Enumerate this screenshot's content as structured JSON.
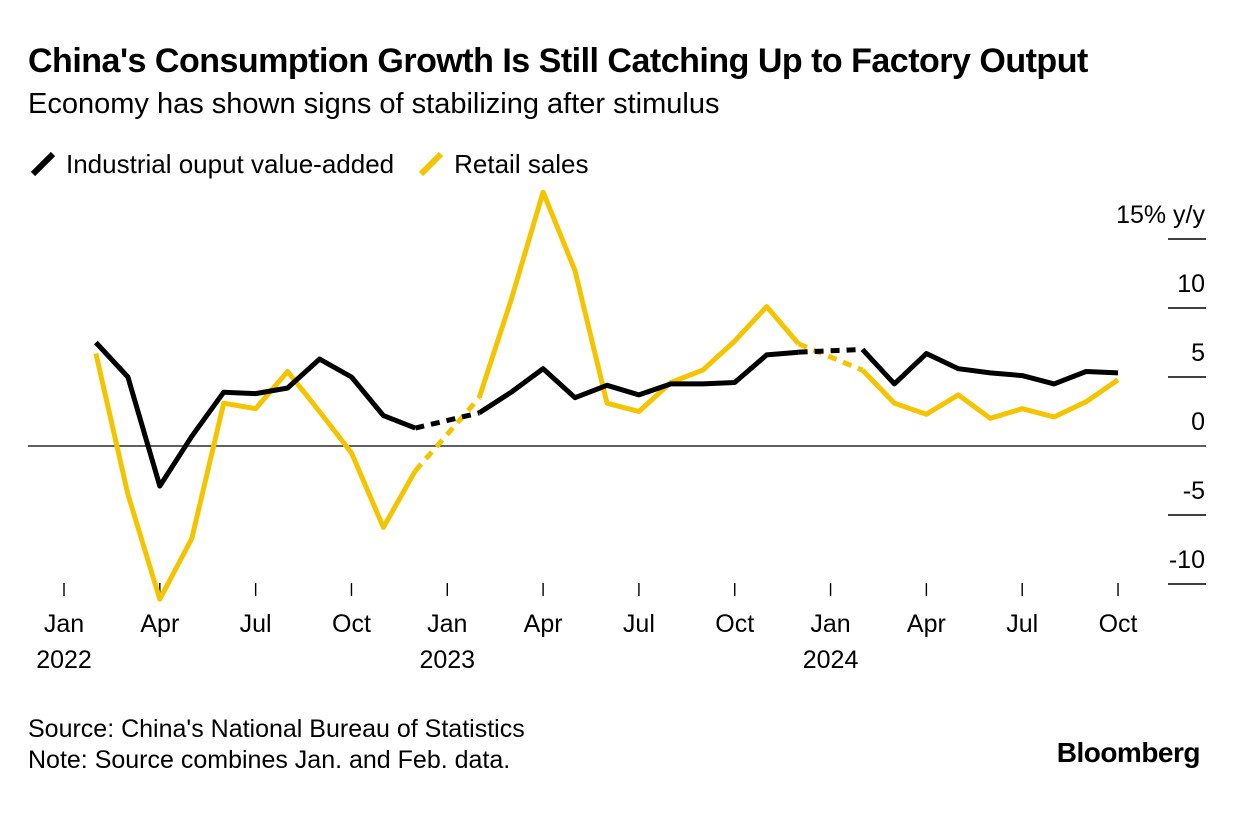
{
  "chart_data": {
    "type": "line",
    "title": "China's Consumption Growth Is Still Catching Up to Factory Output",
    "subtitle": "Economy has shown signs of stabilizing after stimulus",
    "ylabel": "% y/y",
    "ylim": [
      -10,
      15
    ],
    "yticks": [
      {
        "value": 15,
        "label": "15% y/y"
      },
      {
        "value": 10,
        "label": "10"
      },
      {
        "value": 5,
        "label": "5"
      },
      {
        "value": 0,
        "label": "0"
      },
      {
        "value": -5,
        "label": "-5"
      },
      {
        "value": -10,
        "label": "-10"
      }
    ],
    "xticks": [
      {
        "index": 0,
        "label": "Jan",
        "year": "2022"
      },
      {
        "index": 3,
        "label": "Apr",
        "year": ""
      },
      {
        "index": 6,
        "label": "Jul",
        "year": ""
      },
      {
        "index": 9,
        "label": "Oct",
        "year": ""
      },
      {
        "index": 12,
        "label": "Jan",
        "year": "2023"
      },
      {
        "index": 15,
        "label": "Apr",
        "year": ""
      },
      {
        "index": 18,
        "label": "Jul",
        "year": ""
      },
      {
        "index": 21,
        "label": "Oct",
        "year": ""
      },
      {
        "index": 24,
        "label": "Jan",
        "year": "2024"
      },
      {
        "index": 27,
        "label": "Apr",
        "year": ""
      },
      {
        "index": 30,
        "label": "Jul",
        "year": ""
      },
      {
        "index": 33,
        "label": "Oct",
        "year": ""
      }
    ],
    "series": [
      {
        "name": "Industrial ouput value-added",
        "color": "#000000",
        "points": [
          [
            1,
            7.5
          ],
          [
            2,
            5.0
          ],
          [
            3,
            -2.9
          ],
          [
            4,
            0.7
          ],
          [
            5,
            3.9
          ],
          [
            6,
            3.8
          ],
          [
            7,
            4.2
          ],
          [
            8,
            6.3
          ],
          [
            9,
            5.0
          ],
          [
            10,
            2.2
          ],
          [
            11,
            1.3
          ],
          [
            13,
            2.4
          ],
          [
            14,
            3.9
          ],
          [
            15,
            5.6
          ],
          [
            16,
            3.5
          ],
          [
            17,
            4.4
          ],
          [
            18,
            3.7
          ],
          [
            19,
            4.5
          ],
          [
            20,
            4.5
          ],
          [
            21,
            4.6
          ],
          [
            22,
            6.6
          ],
          [
            23,
            6.8
          ],
          [
            25,
            7.0
          ],
          [
            26,
            4.5
          ],
          [
            27,
            6.7
          ],
          [
            28,
            5.6
          ],
          [
            29,
            5.3
          ],
          [
            30,
            5.1
          ],
          [
            31,
            4.5
          ],
          [
            32,
            5.4
          ],
          [
            33,
            5.3
          ]
        ],
        "dashed_gaps": [
          [
            11,
            13
          ],
          [
            23,
            25
          ]
        ]
      },
      {
        "name": "Retail sales",
        "color": "#f5c400",
        "points": [
          [
            1,
            6.7
          ],
          [
            2,
            -3.5
          ],
          [
            3,
            -11.1
          ],
          [
            4,
            -6.7
          ],
          [
            5,
            3.1
          ],
          [
            6,
            2.7
          ],
          [
            7,
            5.4
          ],
          [
            8,
            2.5
          ],
          [
            9,
            -0.5
          ],
          [
            10,
            -5.9
          ],
          [
            11,
            -1.8
          ],
          [
            13,
            3.5
          ],
          [
            14,
            10.6
          ],
          [
            15,
            18.4
          ],
          [
            16,
            12.7
          ],
          [
            17,
            3.1
          ],
          [
            18,
            2.5
          ],
          [
            19,
            4.6
          ],
          [
            20,
            5.5
          ],
          [
            21,
            7.6
          ],
          [
            22,
            10.1
          ],
          [
            23,
            7.4
          ],
          [
            25,
            5.5
          ],
          [
            26,
            3.1
          ],
          [
            27,
            2.3
          ],
          [
            28,
            3.7
          ],
          [
            29,
            2.0
          ],
          [
            30,
            2.7
          ],
          [
            31,
            2.1
          ],
          [
            32,
            3.2
          ],
          [
            33,
            4.8
          ]
        ],
        "dashed_gaps": [
          [
            11,
            13
          ],
          [
            23,
            25
          ]
        ]
      }
    ]
  },
  "source_text": "Source: China's National Bureau of Statistics",
  "note_text": "Note: Source combines Jan. and Feb. data.",
  "brand": "Bloomberg"
}
